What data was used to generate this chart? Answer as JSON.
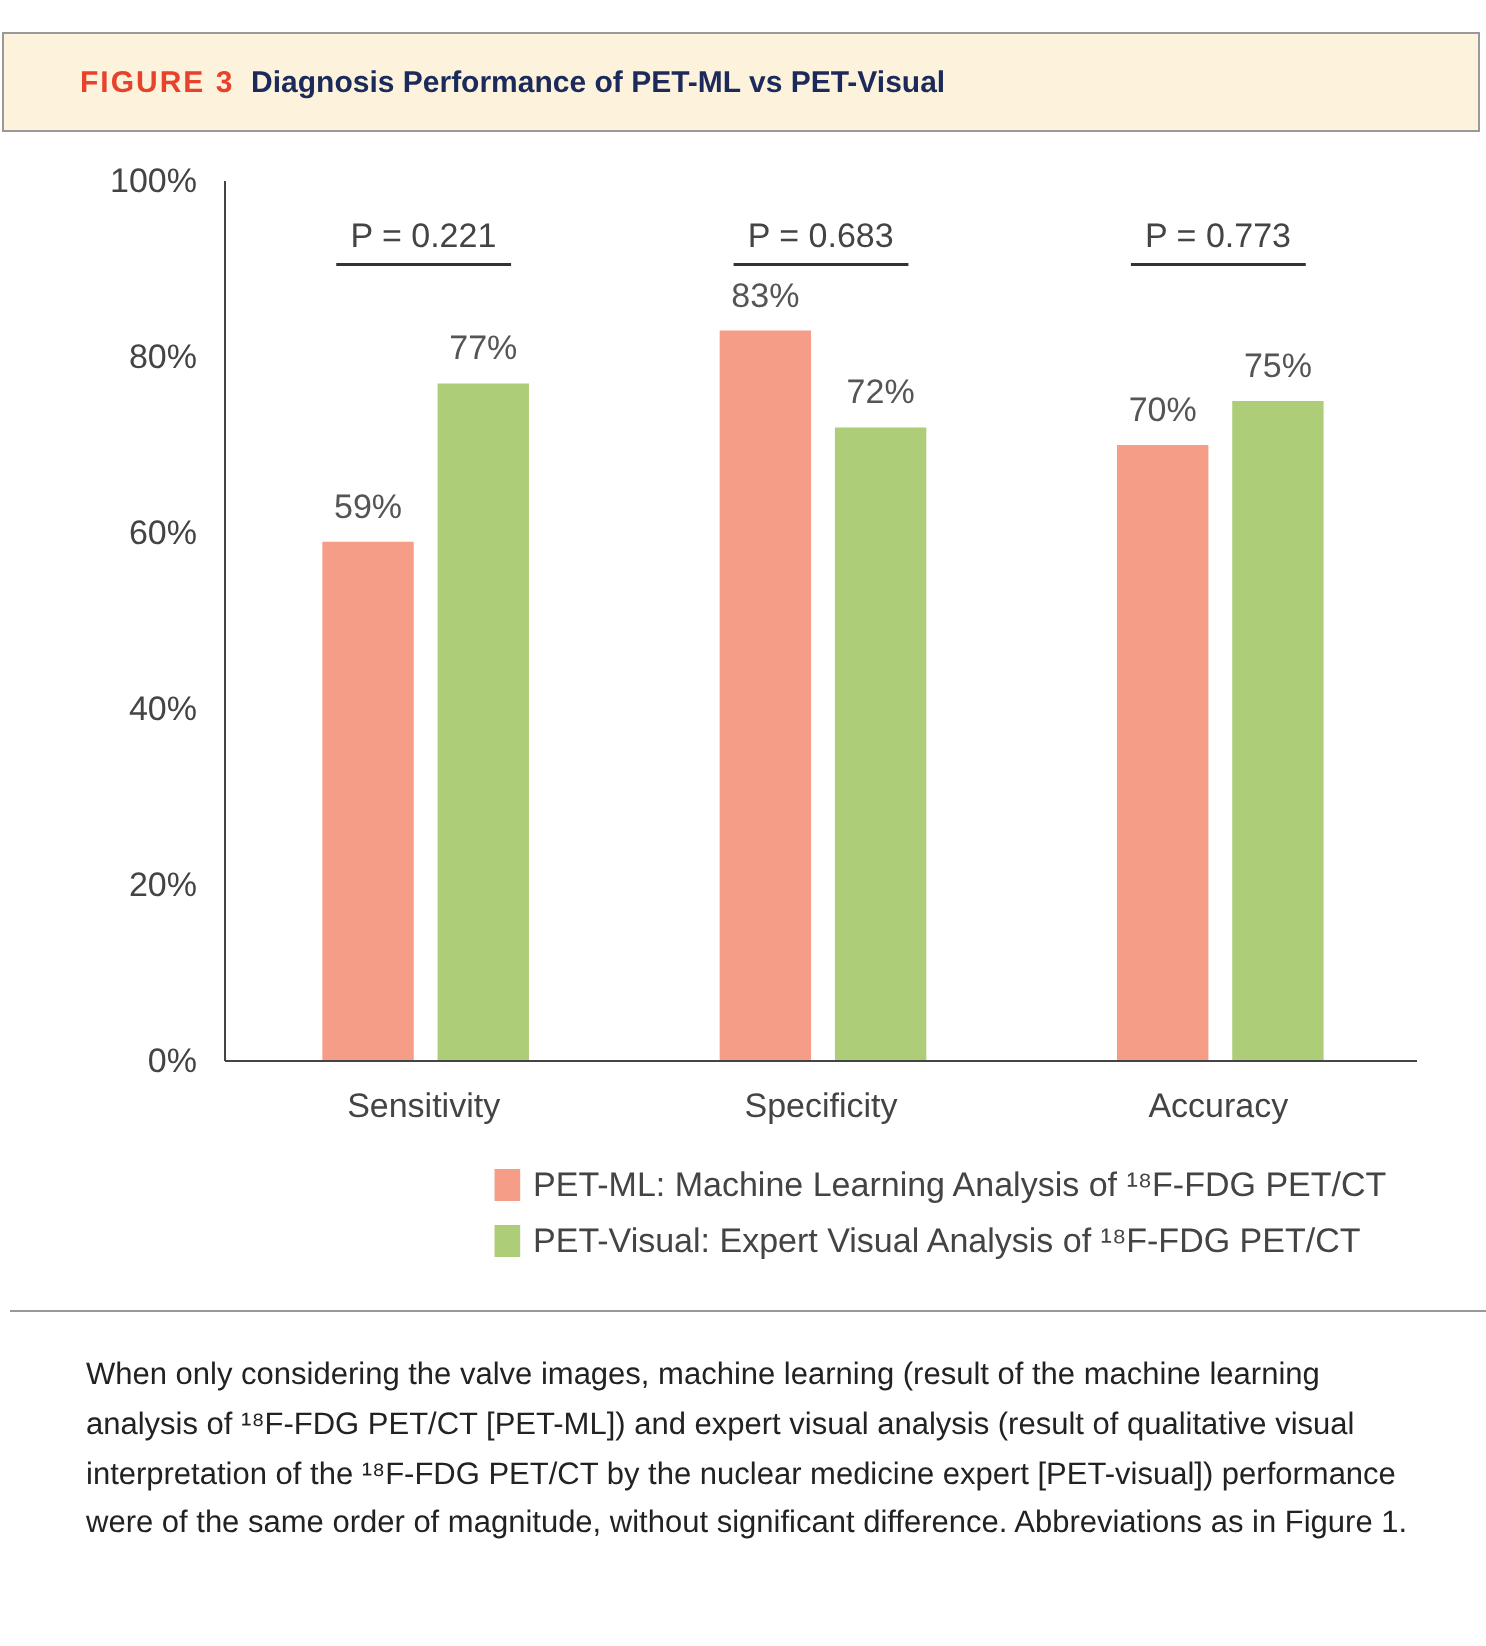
{
  "chart_data": {
    "type": "bar",
    "title": "Diagnosis Performance of PET-ML vs PET-Visual",
    "categories": [
      "Sensitivity",
      "Specificity",
      "Accuracy"
    ],
    "series": [
      {
        "name": "PET-ML: Machine Learning Analysis of ¹⁸F-FDG PET/CT",
        "color": "#f59d86",
        "values": [
          59,
          83,
          70
        ]
      },
      {
        "name": "PET-Visual: Expert Visual Analysis of ¹⁸F-FDG PET/CT",
        "color": "#aecd78",
        "values": [
          77,
          72,
          75
        ]
      }
    ],
    "ylim": [
      0,
      100
    ],
    "yticks": [
      {
        "value": 0,
        "label": "0%"
      },
      {
        "value": 20,
        "label": "20%"
      },
      {
        "value": 40,
        "label": "40%"
      },
      {
        "value": 60,
        "label": "60%"
      },
      {
        "value": 80,
        "label": "80%"
      },
      {
        "value": 100,
        "label": "100%"
      }
    ],
    "value_labels": [
      [
        "59%",
        "83%",
        "70%"
      ],
      [
        "77%",
        "72%",
        "75%"
      ]
    ],
    "annotations": [
      "FIGURE 3",
      "P = 0.221",
      "P = 0.683",
      "P = 0.773",
      "When only considering the valve images, machine learning (result of the machine learning analysis of ¹⁸F-FDG PET/CT [PET-ML]) and expert visual analysis (result of qualitative visual interpretation of the ¹⁸F-FDG PET/CT by the nuclear medicine expert [PET-visual]) performance were of the same order of magnitude, without significant difference. Abbreviations as in Figure 1."
    ],
    "grid": false,
    "legend": "bottom"
  }
}
